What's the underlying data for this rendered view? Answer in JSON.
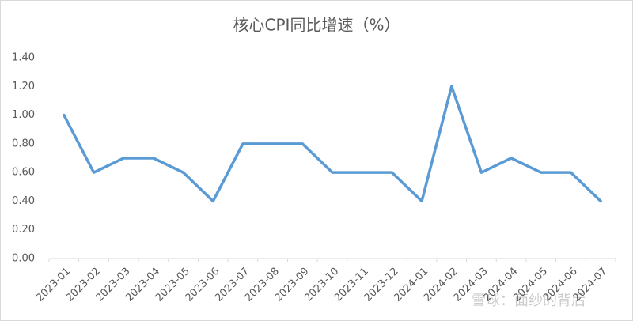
{
  "chart_data": {
    "type": "line",
    "title": "核心CPI同比增速（%）",
    "categories": [
      "2023-01",
      "2023-02",
      "2023-03",
      "2023-04",
      "2023-05",
      "2023-06",
      "2023-07",
      "2023-08",
      "2023-09",
      "2023-10",
      "2023-11",
      "2023-12",
      "2024-01",
      "2024-02",
      "2024-03",
      "2024-04",
      "2024-05",
      "2024-06",
      "2024-07"
    ],
    "series": [
      {
        "name": "核心CPI同比增速",
        "color": "#5b9bd5",
        "values": [
          1.0,
          0.6,
          0.7,
          0.7,
          0.6,
          0.4,
          0.8,
          0.8,
          0.8,
          0.6,
          0.6,
          0.6,
          0.4,
          1.2,
          0.6,
          0.7,
          0.6,
          0.6,
          0.4
        ]
      }
    ],
    "ylim": [
      0,
      1.4
    ],
    "yticks": [
      {
        "value": 0,
        "label": "0.00"
      },
      {
        "value": 0.2,
        "label": "0.20"
      },
      {
        "value": 0.4,
        "label": "0.40"
      },
      {
        "value": 0.6,
        "label": "0.60"
      },
      {
        "value": 0.8,
        "label": "0.80"
      },
      {
        "value": 1.0,
        "label": "1.00"
      },
      {
        "value": 1.2,
        "label": "1.20"
      },
      {
        "value": 1.4,
        "label": "1.40"
      }
    ],
    "grid": false,
    "watermark": "雪球：面纱的背后"
  }
}
